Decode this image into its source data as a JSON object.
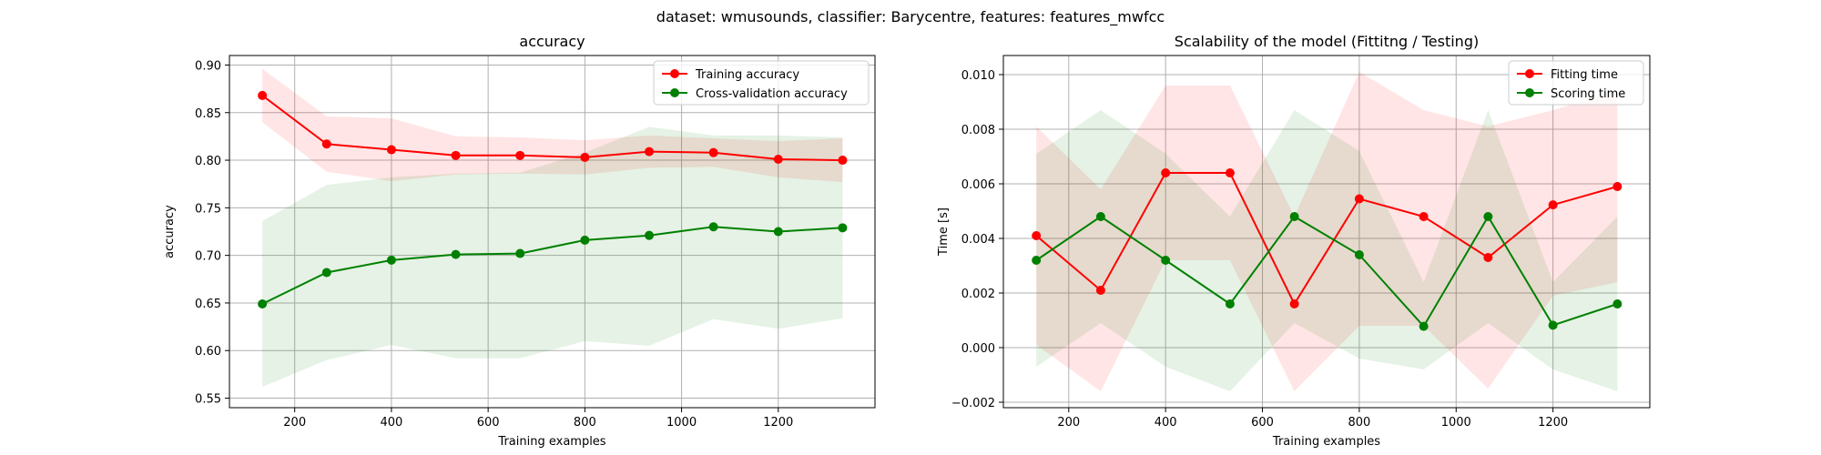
{
  "figure": {
    "suptitle": "dataset: wmusounds, classifier: Barycentre, features: features_mwfcc"
  },
  "chart_data": [
    {
      "type": "line",
      "title": "accuracy",
      "xlabel": "Training examples",
      "ylabel": "accuracy",
      "xlim": [
        65,
        1400
      ],
      "ylim": [
        0.54,
        0.91
      ],
      "xticks": [
        200,
        400,
        600,
        800,
        1000,
        1200
      ],
      "yticks": [
        0.55,
        0.6,
        0.65,
        0.7,
        0.75,
        0.8,
        0.85,
        0.9
      ],
      "ytick_labels": [
        "0.55",
        "0.60",
        "0.65",
        "0.70",
        "0.75",
        "0.80",
        "0.85",
        "0.90"
      ],
      "grid": true,
      "legend_position": "upper right",
      "x": [
        133,
        266,
        400,
        533,
        666,
        800,
        933,
        1066,
        1200,
        1333
      ],
      "series": [
        {
          "name": "Training accuracy",
          "color": "#ff0000",
          "values": [
            0.868,
            0.817,
            0.811,
            0.805,
            0.805,
            0.803,
            0.809,
            0.808,
            0.801,
            0.8
          ],
          "band_low": [
            0.84,
            0.788,
            0.778,
            0.785,
            0.786,
            0.785,
            0.792,
            0.793,
            0.782,
            0.777
          ],
          "band_high": [
            0.896,
            0.846,
            0.844,
            0.825,
            0.824,
            0.821,
            0.826,
            0.823,
            0.82,
            0.823
          ]
        },
        {
          "name": "Cross-validation accuracy",
          "color": "#008000",
          "values": [
            0.649,
            0.682,
            0.695,
            0.701,
            0.702,
            0.716,
            0.721,
            0.73,
            0.725,
            0.729
          ],
          "band_low": [
            0.562,
            0.59,
            0.606,
            0.592,
            0.592,
            0.61,
            0.605,
            0.633,
            0.623,
            0.634
          ],
          "band_high": [
            0.736,
            0.774,
            0.782,
            0.786,
            0.787,
            0.808,
            0.835,
            0.826,
            0.826,
            0.824
          ]
        }
      ]
    },
    {
      "type": "line",
      "title": "Scalability of the model (Fittitng / Testing)",
      "xlabel": "Training examples",
      "ylabel": "Time [s]",
      "xlim": [
        65,
        1400
      ],
      "ylim": [
        -0.0022,
        0.0107
      ],
      "xticks": [
        200,
        400,
        600,
        800,
        1000,
        1200
      ],
      "yticks": [
        -0.002,
        0.0,
        0.002,
        0.004,
        0.006,
        0.008,
        0.01
      ],
      "ytick_labels": [
        "−0.002",
        "0.000",
        "0.002",
        "0.004",
        "0.006",
        "0.008",
        "0.010"
      ],
      "grid": true,
      "legend_position": "upper right",
      "x": [
        133,
        266,
        400,
        533,
        666,
        800,
        933,
        1066,
        1200,
        1333
      ],
      "series": [
        {
          "name": "Fitting time",
          "color": "#ff0000",
          "values": [
            0.0041,
            0.0021,
            0.0064,
            0.0064,
            0.0016,
            0.00545,
            0.0048,
            0.0033,
            0.00523,
            0.0059
          ],
          "band_low": [
            0.0001,
            -0.0016,
            0.0032,
            0.0032,
            -0.0016,
            0.0008,
            0.0008,
            -0.0015,
            0.0019,
            0.0024
          ],
          "band_high": [
            0.0081,
            0.0058,
            0.0096,
            0.0096,
            0.0048,
            0.0101,
            0.0087,
            0.0081,
            0.0087,
            0.0094
          ]
        },
        {
          "name": "Scoring time",
          "color": "#008000",
          "values": [
            0.0032,
            0.0048,
            0.0032,
            0.0016,
            0.0048,
            0.0034,
            0.00078,
            0.0048,
            0.00082,
            0.0016
          ],
          "band_low": [
            -0.0007,
            0.0009,
            -0.0007,
            -0.0016,
            0.0009,
            -0.0004,
            -0.0008,
            0.0009,
            -0.0008,
            -0.0016
          ],
          "band_high": [
            0.0071,
            0.0087,
            0.0071,
            0.0048,
            0.0087,
            0.0072,
            0.0024,
            0.0087,
            0.0024,
            0.0048
          ]
        }
      ]
    }
  ]
}
